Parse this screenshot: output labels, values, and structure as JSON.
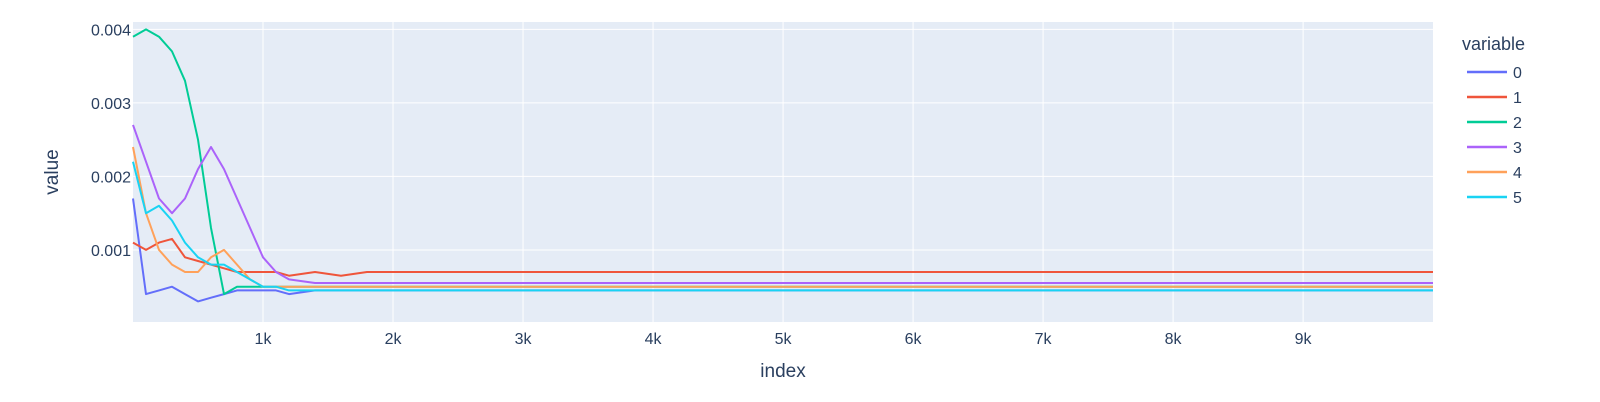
{
  "chart_data": {
    "type": "line",
    "xlabel": "index",
    "ylabel": "value",
    "legend_title": "variable",
    "legend_position": "top-right",
    "grid": true,
    "xlim": [
      0,
      9999
    ],
    "ylim": [
      2e-05,
      0.0041
    ],
    "x_ticks": [
      1000,
      2000,
      3000,
      4000,
      5000,
      6000,
      7000,
      8000,
      9000
    ],
    "x_tick_labels": [
      "1k",
      "2k",
      "3k",
      "4k",
      "5k",
      "6k",
      "7k",
      "8k",
      "9k"
    ],
    "y_ticks": [
      0.001,
      0.002,
      0.003,
      0.004
    ],
    "y_tick_labels": [
      "0.001",
      "0.002",
      "0.003",
      "0.004"
    ],
    "x": [
      0,
      100,
      200,
      300,
      400,
      500,
      600,
      700,
      800,
      900,
      1000,
      1100,
      1200,
      1400,
      1600,
      1800,
      2000,
      2500,
      3000,
      3500,
      4000,
      4500,
      5000,
      5500,
      6000,
      6500,
      7000,
      7500,
      8000,
      8500,
      9000,
      9500,
      9999
    ],
    "series": [
      {
        "name": "0",
        "color": "#636efa",
        "values": [
          0.0017,
          0.0004,
          0.00045,
          0.0005,
          0.0004,
          0.0003,
          0.00035,
          0.0004,
          0.00045,
          0.00045,
          0.00045,
          0.00045,
          0.0004,
          0.00045,
          0.00045,
          0.00045,
          0.00045,
          0.00045,
          0.00045,
          0.00045,
          0.00045,
          0.00045,
          0.00045,
          0.00045,
          0.00045,
          0.00045,
          0.00045,
          0.00045,
          0.00045,
          0.00045,
          0.00045,
          0.00045,
          0.00045
        ]
      },
      {
        "name": "1",
        "color": "#ef553b",
        "values": [
          0.0011,
          0.001,
          0.0011,
          0.00115,
          0.0009,
          0.00085,
          0.0008,
          0.00075,
          0.0007,
          0.0007,
          0.0007,
          0.0007,
          0.00065,
          0.0007,
          0.00065,
          0.0007,
          0.0007,
          0.0007,
          0.0007,
          0.0007,
          0.0007,
          0.0007,
          0.0007,
          0.0007,
          0.0007,
          0.0007,
          0.0007,
          0.0007,
          0.0007,
          0.0007,
          0.0007,
          0.0007,
          0.0007
        ]
      },
      {
        "name": "2",
        "color": "#00cc96",
        "values": [
          0.0039,
          0.004,
          0.0039,
          0.0037,
          0.0033,
          0.0025,
          0.0013,
          0.0004,
          0.0005,
          0.0005,
          0.0005,
          0.0005,
          0.0005,
          0.0005,
          0.0005,
          0.0005,
          0.0005,
          0.0005,
          0.0005,
          0.0005,
          0.0005,
          0.0005,
          0.0005,
          0.0005,
          0.0005,
          0.0005,
          0.0005,
          0.0005,
          0.0005,
          0.0005,
          0.0005,
          0.0005,
          0.0005
        ]
      },
      {
        "name": "3",
        "color": "#ab63fa",
        "values": [
          0.0027,
          0.0022,
          0.0017,
          0.0015,
          0.0017,
          0.0021,
          0.0024,
          0.0021,
          0.0017,
          0.0013,
          0.0009,
          0.0007,
          0.0006,
          0.00055,
          0.00055,
          0.00055,
          0.00055,
          0.00055,
          0.00055,
          0.00055,
          0.00055,
          0.00055,
          0.00055,
          0.00055,
          0.00055,
          0.00055,
          0.00055,
          0.00055,
          0.00055,
          0.00055,
          0.00055,
          0.00055,
          0.00055
        ]
      },
      {
        "name": "4",
        "color": "#ffa15a",
        "values": [
          0.0024,
          0.0015,
          0.001,
          0.0008,
          0.0007,
          0.0007,
          0.0009,
          0.001,
          0.0008,
          0.0006,
          0.0005,
          0.0005,
          0.0005,
          0.0005,
          0.0005,
          0.0005,
          0.0005,
          0.0005,
          0.0005,
          0.0005,
          0.0005,
          0.0005,
          0.0005,
          0.0005,
          0.0005,
          0.0005,
          0.0005,
          0.0005,
          0.0005,
          0.0005,
          0.0005,
          0.0005,
          0.0005
        ]
      },
      {
        "name": "5",
        "color": "#19d3f3",
        "values": [
          0.0022,
          0.0015,
          0.0016,
          0.0014,
          0.0011,
          0.0009,
          0.0008,
          0.0008,
          0.0007,
          0.0006,
          0.0005,
          0.0005,
          0.00045,
          0.00045,
          0.00045,
          0.00045,
          0.00045,
          0.00045,
          0.00045,
          0.00045,
          0.00045,
          0.00045,
          0.00045,
          0.00045,
          0.00045,
          0.00045,
          0.00045,
          0.00045,
          0.00045,
          0.00045,
          0.00045,
          0.00045,
          0.00045
        ]
      }
    ]
  }
}
